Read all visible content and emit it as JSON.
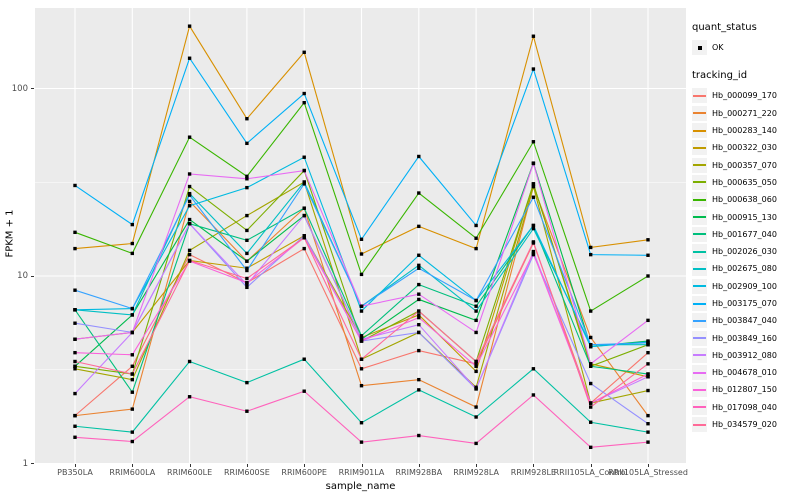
{
  "figure": {
    "x_axis_title": "sample_name",
    "y_axis_title": "FPKM + 1"
  },
  "legend": {
    "quant_status_title": "quant_status",
    "ok_label": "OK",
    "tracking_title": "tracking_id"
  },
  "chart_data": {
    "type": "line",
    "x_type": "categorical",
    "y_scale": "log10",
    "title": "",
    "xlabel": "sample_name",
    "ylabel": "FPKM + 1",
    "grid": "on",
    "legend_position": "right",
    "panel_background": "#EBEBEB",
    "gridline_color": "#FFFFFF",
    "point_color": "#000000",
    "quant_status": "OK",
    "y_ticks": [
      1,
      10,
      100
    ],
    "y_minor_ticks": [
      3.1623,
      31.623
    ],
    "ylim": [
      1,
      268
    ],
    "categories": [
      "PB350LA",
      "RRIM600LA",
      "RRIM600LE",
      "RRIM600SE",
      "RRIM600PE",
      "RRIM901LA",
      "RRIM928BA",
      "RRIM928LA",
      "RRIM928LE",
      "RRII105LA_Control",
      "RRII105LA_Stressed"
    ],
    "series": [
      {
        "name": "Hb_000099_170",
        "color": "#F8766D",
        "values": [
          1.8,
          3.3,
          13,
          9.2,
          14,
          3.2,
          4.0,
          3.4,
          15,
          2.1,
          3.9
        ]
      },
      {
        "name": "Hb_000271_220",
        "color": "#EA8331",
        "values": [
          1.8,
          1.95,
          25,
          12,
          23,
          2.6,
          2.8,
          2.0,
          30,
          4.7,
          1.8
        ]
      },
      {
        "name": "Hb_000283_140",
        "color": "#D89000",
        "values": [
          14,
          14.9,
          215,
          69,
          156,
          13.1,
          18.4,
          14,
          190,
          14.2,
          15.6
        ]
      },
      {
        "name": "Hb_000322_030",
        "color": "#C09B00",
        "values": [
          4.6,
          5.0,
          12.1,
          11,
          16.4,
          4.7,
          6.2,
          3.1,
          31,
          3.4,
          2.9
        ]
      },
      {
        "name": "Hb_000357_070",
        "color": "#A3A500",
        "values": [
          3.2,
          2.8,
          13.7,
          21,
          31.7,
          3.6,
          5.0,
          2.55,
          30,
          2.1,
          2.45
        ]
      },
      {
        "name": "Hb_000635_050",
        "color": "#7CAE00",
        "values": [
          3.3,
          3.0,
          30,
          17.5,
          36.5,
          4.5,
          6.5,
          3.5,
          31,
          3.3,
          4.3
        ]
      },
      {
        "name": "Hb_000638_060",
        "color": "#39B600",
        "values": [
          17.1,
          13.2,
          55,
          34,
          84,
          10.2,
          27.7,
          15.9,
          52,
          6.5,
          10.0
        ]
      },
      {
        "name": "Hb_000915_130",
        "color": "#00BB4E",
        "values": [
          3.3,
          6.2,
          20,
          12,
          21,
          4.6,
          7.5,
          5.8,
          40,
          4.2,
          4.5
        ]
      },
      {
        "name": "Hb_001677_040",
        "color": "#00BF7D",
        "values": [
          6.6,
          2.4,
          19,
          15.5,
          23,
          4.8,
          9.0,
          6.9,
          18.6,
          3.3,
          3.0
        ]
      },
      {
        "name": "Hb_002026_030",
        "color": "#00C1A3",
        "values": [
          1.58,
          1.47,
          3.5,
          2.7,
          3.6,
          1.65,
          2.47,
          1.77,
          3.2,
          1.66,
          1.47
        ]
      },
      {
        "name": "Hb_002675_080",
        "color": "#00BFC4",
        "values": [
          6.6,
          6.2,
          27.5,
          13.2,
          31.7,
          6.9,
          11.4,
          6.5,
          17.9,
          4.3,
          4.3
        ]
      },
      {
        "name": "Hb_002909_100",
        "color": "#00BAE0",
        "values": [
          6.6,
          6.7,
          23.7,
          29.6,
          43,
          6.5,
          12.9,
          7.4,
          18.6,
          4.2,
          4.45
        ]
      },
      {
        "name": "Hb_003175_070",
        "color": "#00B0F6",
        "values": [
          30.4,
          18.8,
          145,
          51,
          94,
          15.7,
          43.4,
          18.6,
          127,
          13.0,
          12.9
        ]
      },
      {
        "name": "Hb_003847_040",
        "color": "#35A2FF",
        "values": [
          8.4,
          6.7,
          27,
          10.7,
          31,
          6.9,
          11,
          7.4,
          26.3,
          4.3,
          4.4
        ]
      },
      {
        "name": "Hb_003849_160",
        "color": "#9590FF",
        "values": [
          5.6,
          5.0,
          19,
          8.7,
          16.4,
          4.5,
          5.0,
          2.5,
          13,
          2.67,
          1.63
        ]
      },
      {
        "name": "Hb_003912_080",
        "color": "#C77CFF",
        "values": [
          2.36,
          5.0,
          19,
          9.0,
          21,
          4.6,
          5.5,
          2.5,
          13.5,
          2.1,
          2.9
        ]
      },
      {
        "name": "Hb_004678_010",
        "color": "#E76BF3",
        "values": [
          4.6,
          5.0,
          35,
          33,
          36.5,
          6.9,
          8.0,
          5.0,
          39.8,
          3.4,
          5.8
        ]
      },
      {
        "name": "Hb_012807_150",
        "color": "#FA62DB",
        "values": [
          3.9,
          3.8,
          12,
          9.2,
          16,
          4.5,
          6.0,
          3.3,
          13.2,
          2.1,
          3.0
        ]
      },
      {
        "name": "Hb_017098_040",
        "color": "#FF62BC",
        "values": [
          1.38,
          1.31,
          2.27,
          1.9,
          2.43,
          1.3,
          1.41,
          1.28,
          2.32,
          1.22,
          1.3
        ]
      },
      {
        "name": "Hb_034579_020",
        "color": "#FF6A98",
        "values": [
          3.5,
          3.0,
          12.1,
          9.7,
          16,
          3.6,
          6.5,
          3.5,
          15.2,
          2.0,
          3.4
        ]
      }
    ]
  }
}
